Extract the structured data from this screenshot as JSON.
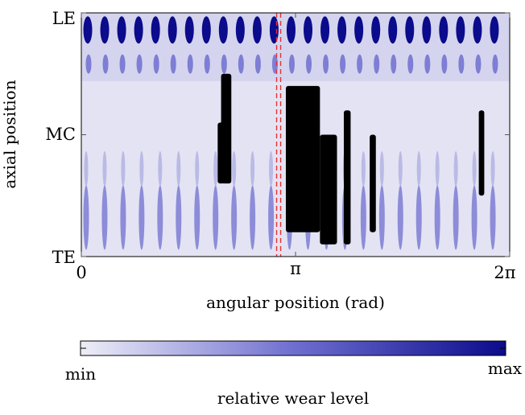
{
  "chart_data": {
    "type": "heatmap",
    "title": "",
    "xlabel": "angular position (rad)",
    "ylabel": "axial position",
    "x_ticks": [
      "0",
      "π",
      "2π"
    ],
    "x_tick_values": [
      0,
      3.1416,
      6.2832
    ],
    "xlim": [
      0,
      6.2832
    ],
    "y_ticks": [
      "LE",
      "MC",
      "TE"
    ],
    "y_tick_values": [
      1,
      0.5,
      0
    ],
    "ylim": [
      0,
      1
    ],
    "colormap": {
      "min_label": "min",
      "max_label": "max",
      "label": "relative wear level",
      "min_color": "#eeeef8",
      "mid_color": "#6f6fd0",
      "max_color": "#0b0b8c",
      "saturated_color": "#000000"
    },
    "reference_line": {
      "x": 2.9,
      "style": "dashed",
      "color": "#e83030"
    },
    "band_count_top": 25,
    "band_count_bottom": 23
  }
}
